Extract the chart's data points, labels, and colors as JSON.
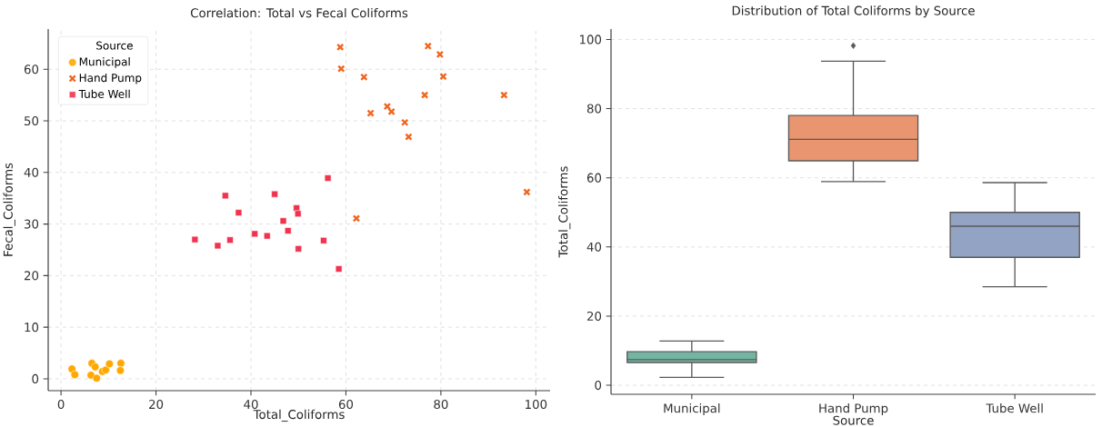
{
  "chart_data": [
    {
      "type": "scatter",
      "title": "Correlation: Total vs Fecal Coliforms",
      "xlabel": "Total_Coliforms",
      "ylabel": "Fecal_Coliforms",
      "legend_title": "Source",
      "legend": "top left",
      "grid": true,
      "xlim": [
        -2.7,
        103
      ],
      "ylim": [
        -2.3,
        67.8
      ],
      "xticks": [
        0,
        20,
        40,
        60,
        80,
        100
      ],
      "yticks": [
        0,
        10,
        20,
        30,
        40,
        50,
        60
      ],
      "series": [
        {
          "name": "Municipal",
          "color": "#ffa800",
          "marker": "circle",
          "x": [
            2.3,
            2.9,
            6.5,
            6.3,
            7.5,
            8.7,
            9.4,
            10.2,
            12.6,
            12.5,
            7.2
          ],
          "values": [
            1.9,
            0.8,
            3.0,
            0.7,
            0.1,
            1.4,
            1.7,
            2.9,
            3.0,
            1.6,
            2.3
          ]
        },
        {
          "name": "Hand Pump",
          "color": "#f2661f",
          "marker": "cross",
          "x": [
            58.8,
            59.0,
            63.8,
            65.2,
            68.7,
            69.6,
            72.4,
            73.2,
            76.6,
            77.3,
            79.8,
            80.5,
            93.3,
            98.1,
            62.2
          ],
          "values": [
            64.3,
            60.1,
            58.5,
            51.5,
            52.8,
            51.8,
            49.7,
            46.9,
            55.0,
            64.5,
            62.9,
            58.6,
            55.0,
            36.2,
            31.1
          ]
        },
        {
          "name": "Tube Well",
          "color": "#f0334f",
          "marker": "square",
          "x": [
            28.2,
            33.0,
            35.6,
            34.6,
            37.4,
            40.8,
            43.4,
            45.0,
            46.8,
            47.8,
            49.6,
            49.9,
            50.0,
            55.3,
            56.2,
            58.5
          ],
          "values": [
            27.0,
            25.8,
            26.9,
            35.5,
            32.2,
            28.1,
            27.7,
            35.8,
            30.6,
            28.7,
            33.1,
            32.0,
            25.2,
            26.8,
            38.9,
            21.3
          ]
        }
      ]
    },
    {
      "type": "box",
      "title": "Distribution of Total Coliforms by Source",
      "xlabel": "Source",
      "ylabel": "Total_Coliforms",
      "grid": "y",
      "categories": [
        "Municipal",
        "Hand Pump",
        "Tube Well"
      ],
      "colors": [
        "#72b6a1",
        "#e9956f",
        "#93a3c4"
      ],
      "ylim": [
        -2.6,
        103
      ],
      "yticks": [
        0,
        20,
        40,
        60,
        80,
        100
      ],
      "boxes": [
        {
          "low": 2.3,
          "q1": 6.6,
          "median": 7.4,
          "q3": 9.7,
          "high": 12.8
        },
        {
          "low": 58.9,
          "q1": 64.9,
          "median": 71.1,
          "q3": 78.0,
          "high": 93.7,
          "outliers": [
            98.2
          ]
        },
        {
          "low": 28.5,
          "q1": 37.0,
          "median": 46.0,
          "q3": 50.0,
          "high": 58.6
        }
      ]
    }
  ]
}
